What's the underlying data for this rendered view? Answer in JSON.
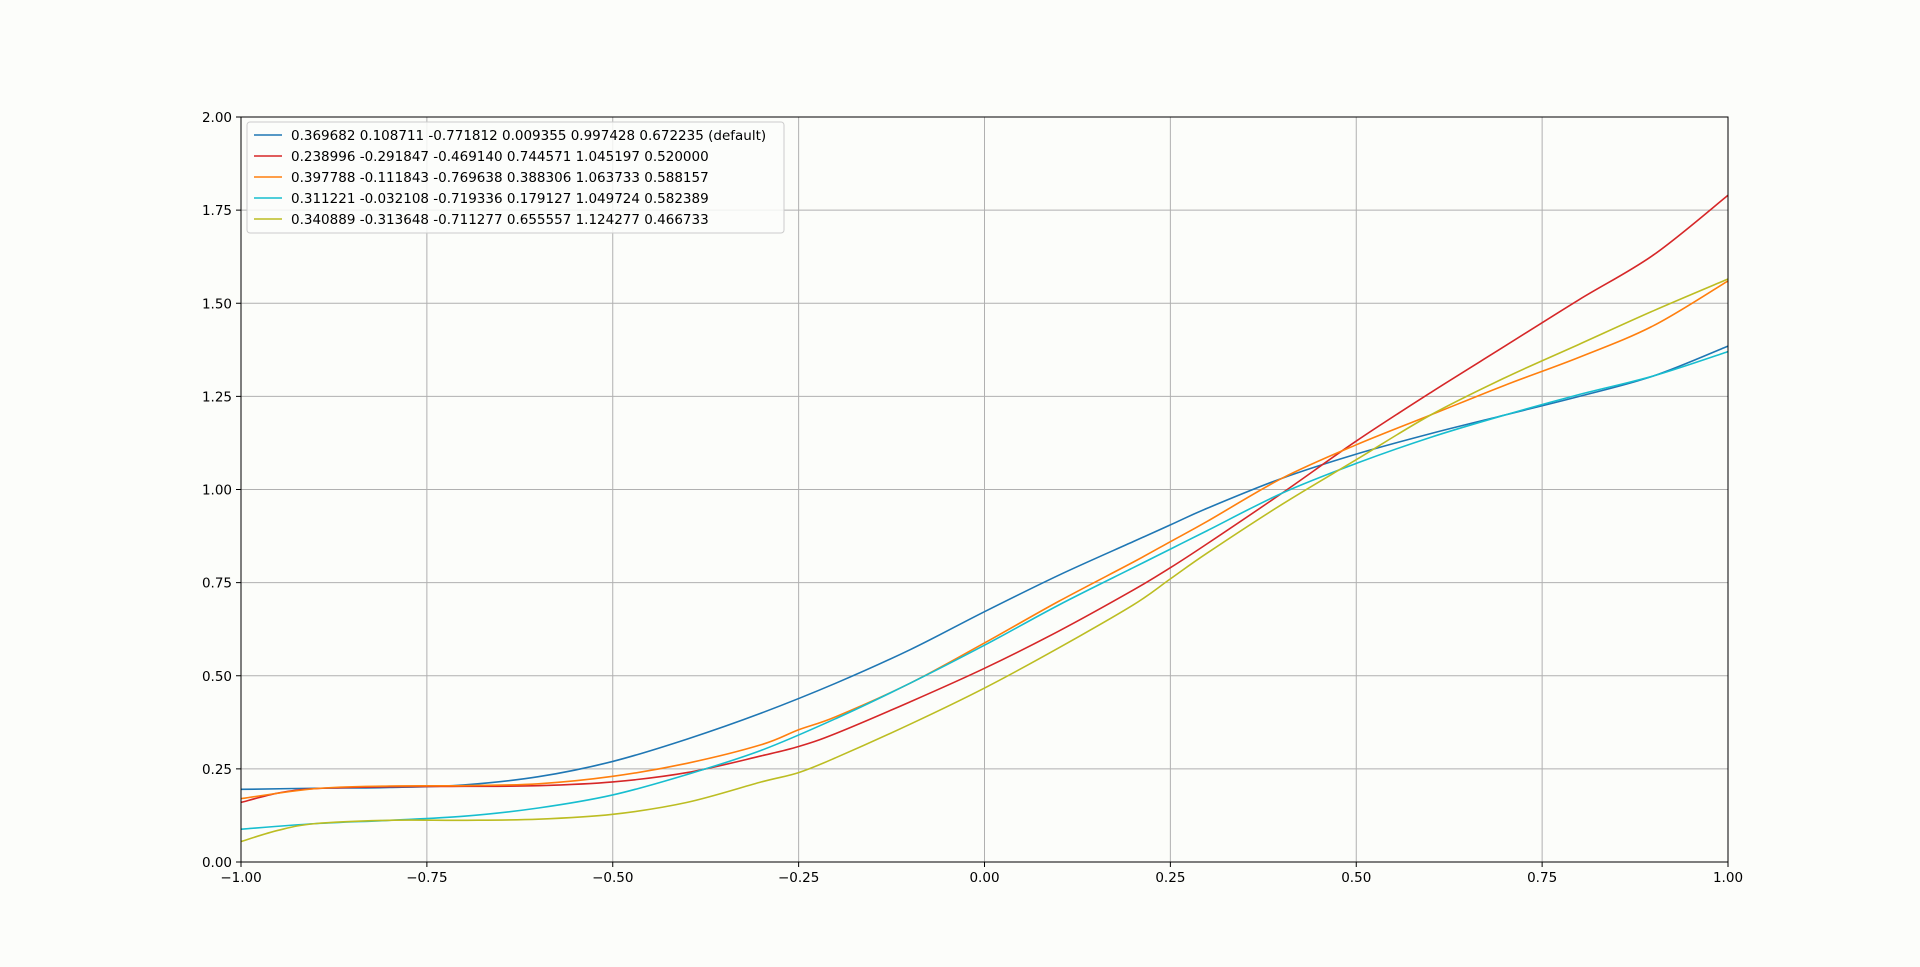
{
  "chart_data": {
    "type": "line",
    "title": "",
    "xlabel": "",
    "ylabel": "",
    "xlim": [
      -1.0,
      1.0
    ],
    "ylim": [
      0.0,
      2.0
    ],
    "xticks": [
      "−1.00",
      "−0.75",
      "−0.50",
      "−0.25",
      "0.00",
      "0.25",
      "0.50",
      "0.75",
      "1.00"
    ],
    "yticks": [
      "0.00",
      "0.25",
      "0.50",
      "0.75",
      "1.00",
      "1.25",
      "1.50",
      "1.75",
      "2.00"
    ],
    "grid": true,
    "legend_position": "top-left",
    "series": [
      {
        "name": "0.369682 0.108711 -0.771812 0.009355 0.997428 0.672235 (default)",
        "color": "#1f77b4",
        "x": [
          -1.0,
          -0.9,
          -0.8,
          -0.7,
          -0.6,
          -0.5,
          -0.4,
          -0.3,
          -0.2,
          -0.1,
          0.0,
          0.1,
          0.2,
          0.25,
          0.3,
          0.4,
          0.5,
          0.6,
          0.7,
          0.8,
          0.9,
          1.0
        ],
        "y": [
          0.195,
          0.198,
          0.2,
          0.207,
          0.229,
          0.27,
          0.33,
          0.4,
          0.48,
          0.57,
          0.672,
          0.77,
          0.86,
          0.905,
          0.95,
          1.03,
          1.095,
          1.15,
          1.2,
          1.25,
          1.305,
          1.385
        ]
      },
      {
        "name": "0.238996 -0.291847 -0.469140 0.744571 1.045197 0.520000",
        "color": "#d62728",
        "x": [
          -1.0,
          -0.95,
          -0.9,
          -0.8,
          -0.7,
          -0.6,
          -0.5,
          -0.4,
          -0.3,
          -0.25,
          -0.2,
          -0.1,
          0.0,
          0.1,
          0.2,
          0.25,
          0.3,
          0.4,
          0.5,
          0.6,
          0.7,
          0.8,
          0.9,
          1.0
        ],
        "y": [
          0.16,
          0.185,
          0.197,
          0.202,
          0.203,
          0.205,
          0.215,
          0.24,
          0.285,
          0.31,
          0.345,
          0.43,
          0.52,
          0.62,
          0.73,
          0.79,
          0.855,
          0.99,
          1.13,
          1.26,
          1.385,
          1.51,
          1.63,
          1.79
        ]
      },
      {
        "name": "0.397788 -0.111843 -0.769638 0.388306 1.063733 0.588157",
        "color": "#ff7f0e",
        "x": [
          -1.0,
          -0.9,
          -0.8,
          -0.7,
          -0.6,
          -0.5,
          -0.4,
          -0.3,
          -0.25,
          -0.2,
          -0.1,
          0.0,
          0.1,
          0.2,
          0.25,
          0.3,
          0.4,
          0.5,
          0.6,
          0.7,
          0.8,
          0.9,
          1.0
        ],
        "y": [
          0.17,
          0.197,
          0.204,
          0.205,
          0.21,
          0.23,
          0.265,
          0.315,
          0.355,
          0.39,
          0.48,
          0.588,
          0.7,
          0.805,
          0.86,
          0.915,
          1.03,
          1.12,
          1.2,
          1.28,
          1.355,
          1.44,
          1.56
        ]
      },
      {
        "name": "0.311221 -0.032108 -0.719336 0.179127 1.049724 0.582389",
        "color": "#17becf",
        "x": [
          -1.0,
          -0.9,
          -0.8,
          -0.7,
          -0.6,
          -0.5,
          -0.4,
          -0.3,
          -0.2,
          -0.1,
          0.0,
          0.1,
          0.2,
          0.25,
          0.3,
          0.4,
          0.5,
          0.6,
          0.7,
          0.8,
          0.9,
          1.0
        ],
        "y": [
          0.088,
          0.103,
          0.112,
          0.123,
          0.145,
          0.18,
          0.235,
          0.3,
          0.385,
          0.48,
          0.582,
          0.69,
          0.79,
          0.84,
          0.89,
          0.99,
          1.07,
          1.14,
          1.2,
          1.255,
          1.305,
          1.37
        ]
      },
      {
        "name": "0.340889 -0.313648 -0.711277 0.655557 1.124277 0.466733",
        "color": "#bcbd22",
        "x": [
          -1.0,
          -0.95,
          -0.9,
          -0.8,
          -0.7,
          -0.6,
          -0.5,
          -0.4,
          -0.3,
          -0.25,
          -0.2,
          -0.1,
          0.0,
          0.1,
          0.2,
          0.25,
          0.3,
          0.4,
          0.5,
          0.6,
          0.7,
          0.8,
          0.9,
          1.0
        ],
        "y": [
          0.055,
          0.085,
          0.103,
          0.112,
          0.112,
          0.115,
          0.128,
          0.16,
          0.215,
          0.24,
          0.28,
          0.37,
          0.467,
          0.575,
          0.69,
          0.76,
          0.83,
          0.96,
          1.08,
          1.2,
          1.3,
          1.39,
          1.48,
          1.565
        ]
      }
    ]
  }
}
